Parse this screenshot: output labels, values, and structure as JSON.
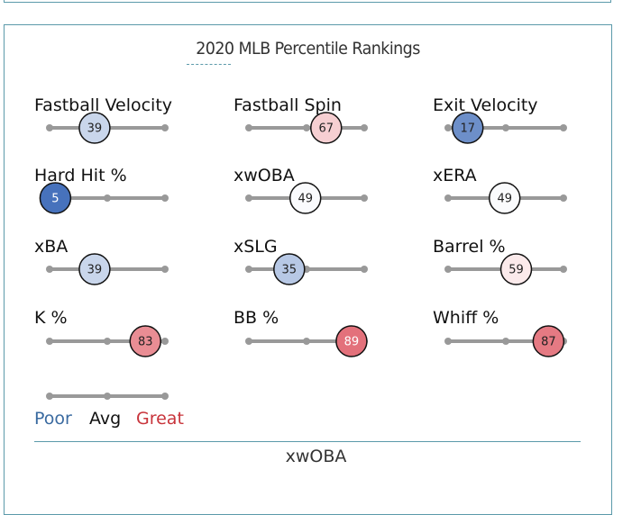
{
  "header": {
    "title": "2020 MLB Percentile Rankings"
  },
  "chart_data": {
    "type": "percentile-slider",
    "title": "2020 MLB Percentile Rankings",
    "range": [
      0,
      100
    ],
    "tick_marks": [
      0,
      50,
      100
    ],
    "metrics": [
      {
        "name": "Fastball Velocity",
        "percentile": 39
      },
      {
        "name": "Fastball Spin",
        "percentile": 67
      },
      {
        "name": "Exit Velocity",
        "percentile": 17
      },
      {
        "name": "Hard Hit %",
        "percentile": 5
      },
      {
        "name": "xwOBA",
        "percentile": 49
      },
      {
        "name": "xERA",
        "percentile": 49
      },
      {
        "name": "xBA",
        "percentile": 39
      },
      {
        "name": "xSLG",
        "percentile": 35
      },
      {
        "name": "Barrel %",
        "percentile": 59
      },
      {
        "name": "K %",
        "percentile": 83
      },
      {
        "name": "BB %",
        "percentile": 89
      },
      {
        "name": "Whiff %",
        "percentile": 87
      }
    ],
    "legend": {
      "poor": "Poor",
      "avg": "Avg",
      "great": "Great"
    },
    "colors": {
      "track": "#999999",
      "poor_text": "#3a6aa0",
      "avg_text": "#111111",
      "great_text": "#c8343b",
      "scale_low": "#3d6bb8",
      "scale_mid": "#ffffff",
      "scale_high": "#d93b48"
    }
  },
  "footer": {
    "selected_metric": "xwOBA"
  }
}
